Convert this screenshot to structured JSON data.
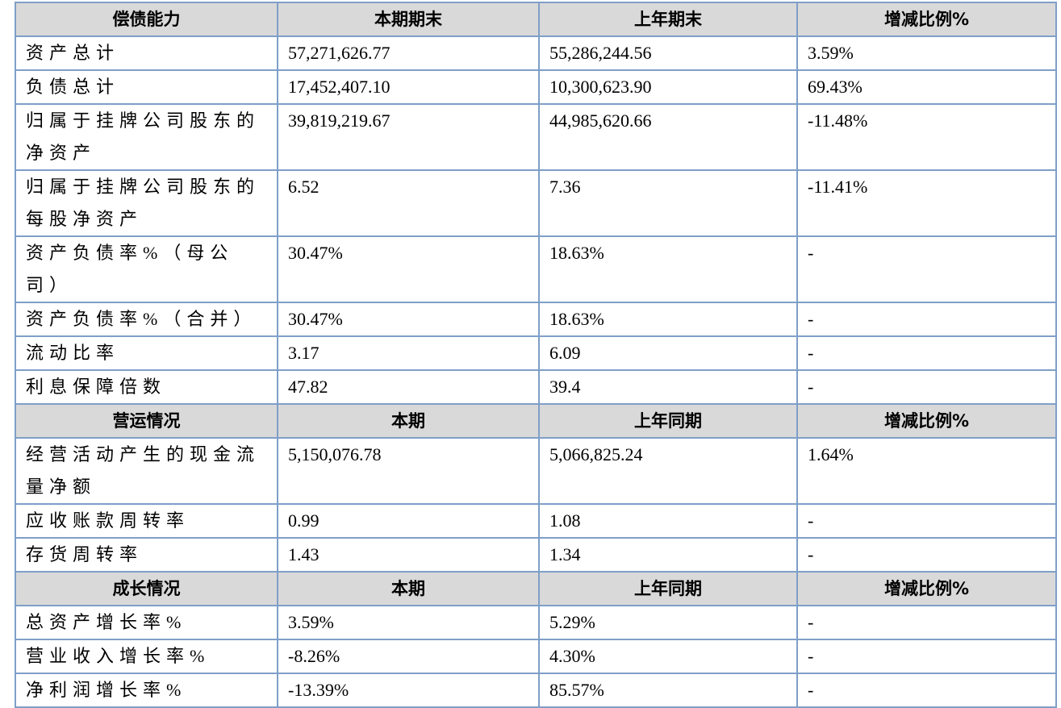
{
  "table": {
    "sections": [
      {
        "header": [
          "偿债能力",
          "本期期末",
          "上年期末",
          "增减比例%"
        ],
        "rows": [
          [
            "资产总计",
            "57,271,626.77",
            "55,286,244.56",
            "3.59%"
          ],
          [
            "负债总计",
            "17,452,407.10",
            "10,300,623.90",
            "69.43%"
          ],
          [
            "归属于挂牌公司股东的净资产",
            "39,819,219.67",
            "44,985,620.66",
            "-11.48%"
          ],
          [
            "归属于挂牌公司股东的每股净资产",
            "6.52",
            "7.36",
            "-11.41%"
          ],
          [
            "资产负债率%（母公司）",
            "30.47%",
            "18.63%",
            "-"
          ],
          [
            "资产负债率%（合并）",
            "30.47%",
            "18.63%",
            "-"
          ],
          [
            "流动比率",
            "3.17",
            "6.09",
            "-"
          ],
          [
            "利息保障倍数",
            "47.82",
            "39.4",
            "-"
          ]
        ]
      },
      {
        "header": [
          "营运情况",
          "本期",
          "上年同期",
          "增减比例%"
        ],
        "rows": [
          [
            "经营活动产生的现金流量净额",
            "5,150,076.78",
            "5,066,825.24",
            "1.64%"
          ],
          [
            "应收账款周转率",
            "0.99",
            "1.08",
            "-"
          ],
          [
            "存货周转率",
            "1.43",
            "1.34",
            "-"
          ]
        ]
      },
      {
        "header": [
          "成长情况",
          "本期",
          "上年同期",
          "增减比例%"
        ],
        "rows": [
          [
            "总资产增长率%",
            "3.59%",
            "5.29%",
            "-"
          ],
          [
            "营业收入增长率%",
            "-8.26%",
            "4.30%",
            "-"
          ],
          [
            "净利润增长率%",
            "-13.39%",
            "85.57%",
            "-"
          ]
        ]
      }
    ]
  }
}
